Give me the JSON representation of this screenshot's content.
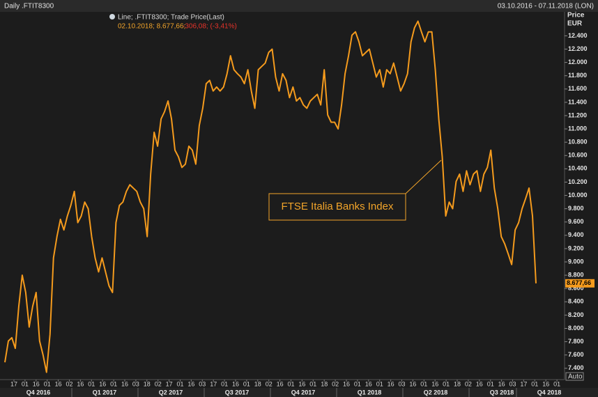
{
  "chart_data": {
    "type": "line",
    "title": "Daily .FTIT8300",
    "subtitle": "03.10.2016 - 07.11.2018 (LON)",
    "y_label": "Price",
    "y_unit": "EUR",
    "legend_quote": "02.10.2018; 8.677,66;",
    "legend_change": "-306,08; (-3,41%)",
    "annotation": "FTSE Italia Banks Index",
    "scale_mode": "Auto",
    "series": [
      {
        "name": "Line; .FTIT8300; Trade Price(Last)",
        "color": "#f59b1d",
        "last_label": "8.677,66",
        "values": [
          7490,
          7810,
          7860,
          7700,
          8330,
          8800,
          8540,
          8020,
          8330,
          8540,
          7810,
          7600,
          7340,
          7910,
          9060,
          9380,
          9640,
          9480,
          9690,
          9850,
          10060,
          9590,
          9690,
          9900,
          9800,
          9380,
          9060,
          8850,
          9060,
          8850,
          8640,
          8540,
          9590,
          9850,
          9900,
          10060,
          10160,
          10110,
          10060,
          9900,
          9800,
          9380,
          10320,
          10950,
          10740,
          11150,
          11260,
          11420,
          11150,
          10680,
          10580,
          10420,
          10470,
          10740,
          10680,
          10470,
          11050,
          11310,
          11680,
          11730,
          11570,
          11630,
          11570,
          11630,
          11830,
          12100,
          11890,
          11830,
          11780,
          11680,
          11890,
          11570,
          11310,
          11890,
          11940,
          11990,
          12150,
          12200,
          11780,
          11570,
          11830,
          11730,
          11470,
          11630,
          11420,
          11470,
          11360,
          11310,
          11420,
          11470,
          11520,
          11360,
          11890,
          11210,
          11100,
          11100,
          11000,
          11360,
          11830,
          12100,
          12410,
          12460,
          12310,
          12100,
          12150,
          12200,
          11990,
          11780,
          11890,
          11630,
          11890,
          11830,
          11990,
          11780,
          11570,
          11680,
          11830,
          12310,
          12520,
          12620,
          12460,
          12310,
          12460,
          12460,
          11890,
          11150,
          10580,
          9690,
          9900,
          9800,
          10210,
          10320,
          10060,
          10370,
          10160,
          10320,
          10370,
          10060,
          10320,
          10420,
          10680,
          10110,
          9800,
          9380,
          9270,
          9120,
          8960,
          9480,
          9590,
          9800,
          9950,
          10110,
          9690,
          8677.66
        ]
      }
    ],
    "ylim": [
      7230,
      12750
    ],
    "yticks": [
      {
        "value": 7400,
        "label": "7.400"
      },
      {
        "value": 7600,
        "label": "7.600"
      },
      {
        "value": 7800,
        "label": "7.800"
      },
      {
        "value": 8000,
        "label": "8.000"
      },
      {
        "value": 8200,
        "label": "8.200"
      },
      {
        "value": 8400,
        "label": "8.400"
      },
      {
        "value": 8600,
        "label": "8.600"
      },
      {
        "value": 8800,
        "label": "8.800"
      },
      {
        "value": 9000,
        "label": "9.000"
      },
      {
        "value": 9200,
        "label": "9.200"
      },
      {
        "value": 9400,
        "label": "9.400"
      },
      {
        "value": 9600,
        "label": "9.600"
      },
      {
        "value": 9800,
        "label": "9.800"
      },
      {
        "value": 10000,
        "label": "10.000"
      },
      {
        "value": 10200,
        "label": "10.200"
      },
      {
        "value": 10400,
        "label": "10.400"
      },
      {
        "value": 10600,
        "label": "10.600"
      },
      {
        "value": 10800,
        "label": "10.800"
      },
      {
        "value": 11000,
        "label": "11.000"
      },
      {
        "value": 11200,
        "label": "11.200"
      },
      {
        "value": 11400,
        "label": "11.400"
      },
      {
        "value": 11600,
        "label": "11.600"
      },
      {
        "value": 11800,
        "label": "11.800"
      },
      {
        "value": 12000,
        "label": "12.000"
      },
      {
        "value": 12200,
        "label": "12.200"
      },
      {
        "value": 12400,
        "label": "12.400"
      }
    ],
    "xtick_labels": [
      "17",
      "01",
      "16",
      "01",
      "16",
      "02",
      "16",
      "01",
      "16",
      "01",
      "16",
      "03",
      "18",
      "02",
      "17",
      "01",
      "16",
      "03",
      "17",
      "01",
      "16",
      "01",
      "18",
      "02",
      "16",
      "01",
      "16",
      "01",
      "18",
      "02",
      "16",
      "01",
      "16",
      "01",
      "16",
      "03",
      "16",
      "01",
      "16",
      "01",
      "18",
      "02",
      "16",
      "01",
      "16",
      "03",
      "17",
      "01",
      "16",
      "01"
    ],
    "quarter_labels": [
      "Q4 2016",
      "Q1 2017",
      "Q2 2017",
      "Q3 2017",
      "Q4 2017",
      "Q1 2018",
      "Q2 2018",
      "Q3 2018",
      "Q4 2018"
    ]
  }
}
